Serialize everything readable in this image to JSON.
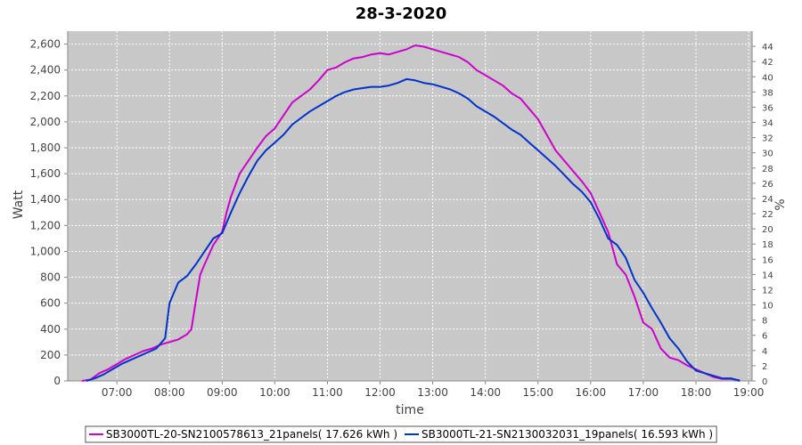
{
  "chart_data": {
    "type": "line",
    "title": "28-3-2020",
    "xlabel": "time",
    "ylabel": "Watt",
    "y2label": "%",
    "x_ticks": [
      "07:00",
      "08:00",
      "09:00",
      "10:00",
      "11:00",
      "12:00",
      "13:00",
      "14:00",
      "15:00",
      "16:00",
      "17:00",
      "18:00",
      "19:00"
    ],
    "y_ticks": [
      "0",
      "200",
      "400",
      "600",
      "800",
      "1,000",
      "1,200",
      "1,400",
      "1,600",
      "1,800",
      "2,000",
      "2,200",
      "2,400",
      "2,600"
    ],
    "y2_ticks": [
      "0",
      "2",
      "4",
      "6",
      "8",
      "10",
      "12",
      "14",
      "16",
      "18",
      "20",
      "22",
      "24",
      "26",
      "28",
      "30",
      "32",
      "34",
      "36",
      "38",
      "40",
      "42",
      "44"
    ],
    "xlim": [
      "06:04",
      "19:04"
    ],
    "ylim": [
      0,
      2700
    ],
    "y2lim": [
      0,
      46
    ],
    "grid": true,
    "legend_position": "bottom",
    "colors": {
      "plot_background": "#c8c8c8",
      "grid": "#ffffff"
    },
    "series": [
      {
        "name": "SB3000TL-20-SN2100578613_21panels( 17.626 kWh )",
        "color": "#cc00cc",
        "points": [
          [
            "06:20",
            0
          ],
          [
            "06:30",
            10
          ],
          [
            "06:40",
            60
          ],
          [
            "06:50",
            90
          ],
          [
            "07:00",
            130
          ],
          [
            "07:10",
            170
          ],
          [
            "07:20",
            200
          ],
          [
            "07:30",
            230
          ],
          [
            "07:40",
            250
          ],
          [
            "07:50",
            280
          ],
          [
            "08:00",
            300
          ],
          [
            "08:10",
            320
          ],
          [
            "08:15",
            340
          ],
          [
            "08:20",
            360
          ],
          [
            "08:25",
            400
          ],
          [
            "08:30",
            620
          ],
          [
            "08:35",
            820
          ],
          [
            "08:40",
            900
          ],
          [
            "08:50",
            1050
          ],
          [
            "09:00",
            1150
          ],
          [
            "09:05",
            1300
          ],
          [
            "09:10",
            1420
          ],
          [
            "09:20",
            1600
          ],
          [
            "09:30",
            1700
          ],
          [
            "09:40",
            1800
          ],
          [
            "09:50",
            1890
          ],
          [
            "10:00",
            1950
          ],
          [
            "10:10",
            2050
          ],
          [
            "10:20",
            2150
          ],
          [
            "10:30",
            2200
          ],
          [
            "10:40",
            2250
          ],
          [
            "10:50",
            2320
          ],
          [
            "11:00",
            2400
          ],
          [
            "11:10",
            2420
          ],
          [
            "11:20",
            2460
          ],
          [
            "11:30",
            2490
          ],
          [
            "11:40",
            2500
          ],
          [
            "11:50",
            2520
          ],
          [
            "12:00",
            2530
          ],
          [
            "12:10",
            2520
          ],
          [
            "12:20",
            2540
          ],
          [
            "12:30",
            2560
          ],
          [
            "12:40",
            2590
          ],
          [
            "12:50",
            2580
          ],
          [
            "13:00",
            2560
          ],
          [
            "13:10",
            2540
          ],
          [
            "13:20",
            2520
          ],
          [
            "13:30",
            2500
          ],
          [
            "13:40",
            2460
          ],
          [
            "13:50",
            2400
          ],
          [
            "14:00",
            2360
          ],
          [
            "14:10",
            2320
          ],
          [
            "14:20",
            2280
          ],
          [
            "14:30",
            2220
          ],
          [
            "14:40",
            2180
          ],
          [
            "14:50",
            2100
          ],
          [
            "15:00",
            2020
          ],
          [
            "15:10",
            1900
          ],
          [
            "15:20",
            1780
          ],
          [
            "15:30",
            1700
          ],
          [
            "15:40",
            1620
          ],
          [
            "15:50",
            1540
          ],
          [
            "16:00",
            1450
          ],
          [
            "16:10",
            1300
          ],
          [
            "16:20",
            1150
          ],
          [
            "16:30",
            900
          ],
          [
            "16:40",
            820
          ],
          [
            "16:50",
            650
          ],
          [
            "17:00",
            450
          ],
          [
            "17:10",
            400
          ],
          [
            "17:20",
            250
          ],
          [
            "17:30",
            180
          ],
          [
            "17:40",
            160
          ],
          [
            "17:50",
            120
          ],
          [
            "18:00",
            90
          ],
          [
            "18:10",
            60
          ],
          [
            "18:20",
            30
          ],
          [
            "18:30",
            15
          ],
          [
            "18:40",
            15
          ],
          [
            "18:50",
            5
          ]
        ]
      },
      {
        "name": "SB3000TL-21-SN2130032031_19panels( 16.593 kWh )",
        "color": "#0033cc",
        "points": [
          [
            "06:25",
            0
          ],
          [
            "06:35",
            20
          ],
          [
            "06:45",
            50
          ],
          [
            "06:55",
            90
          ],
          [
            "07:05",
            130
          ],
          [
            "07:15",
            160
          ],
          [
            "07:25",
            190
          ],
          [
            "07:35",
            220
          ],
          [
            "07:45",
            250
          ],
          [
            "07:55",
            330
          ],
          [
            "08:00",
            600
          ],
          [
            "08:05",
            680
          ],
          [
            "08:10",
            760
          ],
          [
            "08:20",
            810
          ],
          [
            "08:30",
            900
          ],
          [
            "08:40",
            1000
          ],
          [
            "08:50",
            1100
          ],
          [
            "09:00",
            1140
          ],
          [
            "09:10",
            1300
          ],
          [
            "09:20",
            1450
          ],
          [
            "09:30",
            1580
          ],
          [
            "09:40",
            1700
          ],
          [
            "09:50",
            1780
          ],
          [
            "10:00",
            1840
          ],
          [
            "10:10",
            1900
          ],
          [
            "10:20",
            1980
          ],
          [
            "10:30",
            2030
          ],
          [
            "10:40",
            2080
          ],
          [
            "10:50",
            2120
          ],
          [
            "11:00",
            2160
          ],
          [
            "11:10",
            2200
          ],
          [
            "11:20",
            2230
          ],
          [
            "11:30",
            2250
          ],
          [
            "11:40",
            2260
          ],
          [
            "11:50",
            2270
          ],
          [
            "12:00",
            2270
          ],
          [
            "12:10",
            2280
          ],
          [
            "12:20",
            2300
          ],
          [
            "12:30",
            2330
          ],
          [
            "12:40",
            2320
          ],
          [
            "12:50",
            2300
          ],
          [
            "13:00",
            2290
          ],
          [
            "13:10",
            2270
          ],
          [
            "13:20",
            2250
          ],
          [
            "13:30",
            2220
          ],
          [
            "13:40",
            2180
          ],
          [
            "13:50",
            2120
          ],
          [
            "14:00",
            2080
          ],
          [
            "14:10",
            2040
          ],
          [
            "14:20",
            1990
          ],
          [
            "14:30",
            1940
          ],
          [
            "14:40",
            1900
          ],
          [
            "14:50",
            1840
          ],
          [
            "15:00",
            1780
          ],
          [
            "15:10",
            1720
          ],
          [
            "15:20",
            1660
          ],
          [
            "15:30",
            1590
          ],
          [
            "15:40",
            1520
          ],
          [
            "15:50",
            1460
          ],
          [
            "16:00",
            1380
          ],
          [
            "16:10",
            1250
          ],
          [
            "16:20",
            1100
          ],
          [
            "16:30",
            1050
          ],
          [
            "16:40",
            950
          ],
          [
            "16:50",
            780
          ],
          [
            "17:00",
            680
          ],
          [
            "17:10",
            560
          ],
          [
            "17:20",
            450
          ],
          [
            "17:30",
            330
          ],
          [
            "17:40",
            250
          ],
          [
            "17:50",
            150
          ],
          [
            "18:00",
            80
          ],
          [
            "18:10",
            60
          ],
          [
            "18:20",
            40
          ],
          [
            "18:30",
            20
          ],
          [
            "18:40",
            20
          ],
          [
            "18:50",
            0
          ]
        ]
      }
    ]
  }
}
